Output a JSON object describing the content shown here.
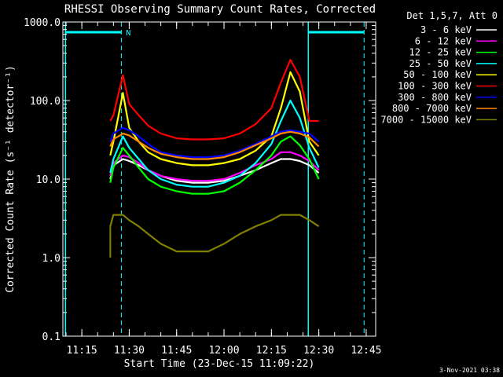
{
  "chart_data": {
    "type": "line",
    "title": "RHESSI Observing Summary Count Rates, Corrected",
    "xlabel": "Start Time (23-Dec-15 11:09:22)",
    "ylabel": "Corrected Count Rate (s⁻¹ detector⁻¹)",
    "y_scale": "log",
    "ylim": [
      0.1,
      1000
    ],
    "xlim": [
      "11:09",
      "12:48"
    ],
    "x_ticks": [
      "11:15",
      "11:30",
      "11:45",
      "12:00",
      "12:15",
      "12:30",
      "12:45"
    ],
    "y_ticks": [
      "0.1",
      "1.0",
      "10.0",
      "100.0",
      "1000.0"
    ],
    "legend_title": "Det 1,5,7, Att 0",
    "legend_position": "right",
    "x": [
      "11:24",
      "11:25",
      "11:28",
      "11:30",
      "11:33",
      "11:36",
      "11:40",
      "11:45",
      "11:50",
      "11:55",
      "12:00",
      "12:05",
      "12:10",
      "12:15",
      "12:18",
      "12:21",
      "12:24",
      "12:27",
      "12:30"
    ],
    "series": [
      {
        "name": "3 - 6 keV",
        "color": "#ffffff",
        "values": [
          10,
          15,
          18,
          17,
          15,
          13,
          11,
          9.5,
          9,
          9,
          9.5,
          11,
          13,
          16,
          18,
          18,
          17,
          15,
          12
        ]
      },
      {
        "name": "6 - 12 keV",
        "color": "#ff00ff",
        "values": [
          11,
          16,
          20,
          19,
          16,
          13,
          11,
          10,
          9.5,
          9.5,
          10,
          12,
          15,
          18,
          22,
          22,
          20,
          17,
          13
        ]
      },
      {
        "name": "12 - 25 keV",
        "color": "#00ff00",
        "values": [
          9,
          14,
          25,
          20,
          14,
          10,
          8,
          7,
          6.5,
          6.5,
          7,
          9,
          13,
          20,
          30,
          35,
          27,
          18,
          10
        ]
      },
      {
        "name": "25 - 50 keV",
        "color": "#00ffff",
        "values": [
          12,
          18,
          35,
          25,
          18,
          13,
          10,
          8.5,
          8,
          8,
          9,
          11,
          16,
          28,
          55,
          100,
          60,
          25,
          14
        ]
      },
      {
        "name": "50 - 100 keV",
        "color": "#ffff00",
        "values": [
          20,
          30,
          125,
          45,
          30,
          22,
          18,
          16,
          15,
          15,
          16,
          18,
          23,
          35,
          80,
          230,
          130,
          30,
          20
        ]
      },
      {
        "name": "100 - 300 keV",
        "color": "#ff0000",
        "values": [
          55,
          65,
          210,
          90,
          65,
          48,
          38,
          33,
          32,
          32,
          33,
          38,
          50,
          80,
          170,
          330,
          200,
          55,
          55
        ]
      },
      {
        "name": "300 - 800 keV",
        "color": "#0000ff",
        "values": [
          30,
          38,
          45,
          42,
          35,
          28,
          22,
          20,
          19,
          19,
          20,
          23,
          28,
          35,
          40,
          42,
          40,
          38,
          30
        ]
      },
      {
        "name": "800 - 7000 keV",
        "color": "#ff8800",
        "values": [
          26,
          32,
          38,
          36,
          30,
          25,
          21,
          19,
          18,
          18,
          19,
          22,
          27,
          33,
          38,
          40,
          38,
          34,
          26
        ]
      },
      {
        "name": "7000 - 15000 keV",
        "color": "#808000",
        "values": [
          2.5,
          3.5,
          3.5,
          3,
          2.5,
          2,
          1.5,
          1.2,
          1.2,
          1.2,
          1.5,
          2,
          2.5,
          3,
          3.5,
          3.5,
          3.5,
          3,
          2.5
        ]
      }
    ],
    "markers": {
      "night_label": "N",
      "solid_lines": [
        "11:09:50",
        "12:26:40"
      ],
      "dashed_lines": [
        "11:27:30",
        "12:44:20"
      ],
      "top_bars": [
        [
          "11:09:50",
          "11:27:30"
        ],
        [
          "12:26:40",
          "12:44:20"
        ]
      ]
    }
  },
  "footer": {
    "timestamp": "3-Nov-2021 03:38"
  }
}
